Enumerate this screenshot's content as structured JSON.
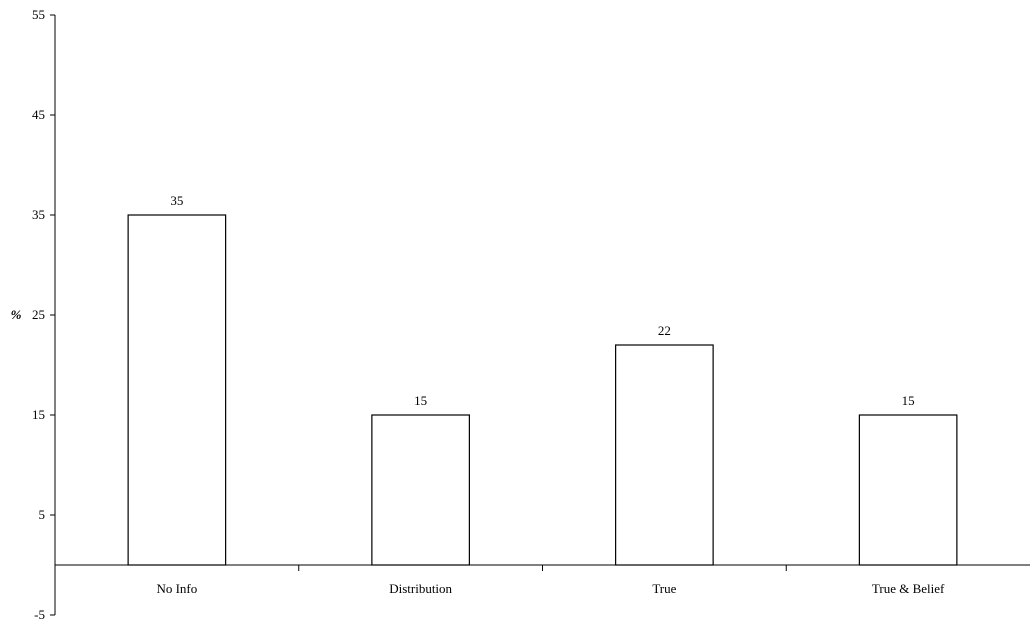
{
  "chart_data": {
    "type": "bar",
    "categories": [
      "No Info",
      "Distribution",
      "True",
      "True & Belief"
    ],
    "values": [
      35,
      15,
      22,
      15
    ],
    "data_labels": [
      "35",
      "15",
      "22",
      "15"
    ],
    "ylabel": "%",
    "xlabel": "",
    "title": "",
    "ylim": [
      -5,
      55
    ],
    "yticks": [
      -5,
      5,
      15,
      25,
      35,
      45,
      55
    ],
    "ytick_labels": [
      "-5",
      "5",
      "15",
      "25",
      "35",
      "45",
      "55"
    ],
    "bar_fill": "#ffffff",
    "bar_stroke": "#000000",
    "grid": false,
    "legend": "none"
  }
}
